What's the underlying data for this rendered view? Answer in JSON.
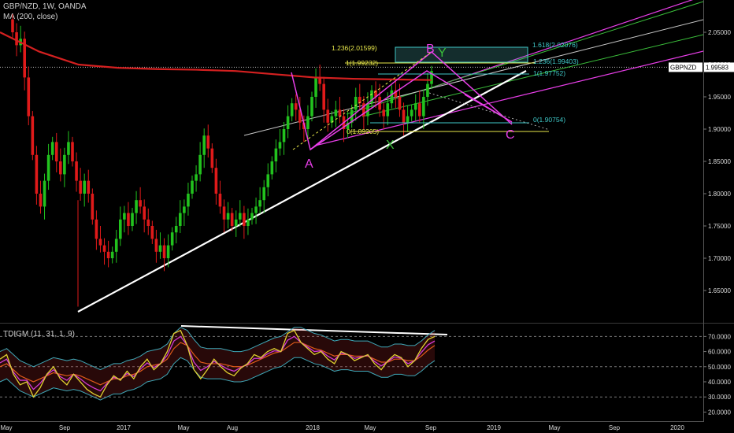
{
  "header": {
    "title": "GBP/NZD, 1W, OANDA",
    "ma_label": "MA (200, close)",
    "indicator_label": "TDIGM (11, 31, 1, 9)"
  },
  "colors": {
    "up": "#22c21e",
    "down": "#e01a1a",
    "ma": "#d42020",
    "trend": "#ffffff",
    "pattern": "#e83ee8",
    "fib": "#3fc8c8",
    "fib_ext": "#e8e84a",
    "upper_channel": "#e83ee8",
    "green_lines": "#3bbf3b",
    "grey_line": "#c8c8c8"
  },
  "price_axis": {
    "ticks": [
      "2.05000",
      "2.00000",
      "1.95000",
      "1.90000",
      "1.85000",
      "1.80000",
      "1.75000",
      "1.70000",
      "1.65000"
    ],
    "current_label": "GBPNZD",
    "current_value": "1.99583",
    "range": [
      1.6,
      2.1
    ]
  },
  "indicator_axis": {
    "ticks": [
      "70.0000",
      "60.0000",
      "50.0000",
      "40.0000",
      "30.0000",
      "20.0000"
    ],
    "range": [
      15,
      78
    ]
  },
  "time_axis": {
    "labels": [
      "May",
      "Sep",
      "2017",
      "May",
      "Aug",
      "2018",
      "May",
      "Sep",
      "2019",
      "May",
      "Sep",
      "2020"
    ]
  },
  "annotations": {
    "points": {
      "A": "A",
      "B": "B",
      "C": "C",
      "X": "X",
      "Y": "Y"
    },
    "fib": [
      {
        "label": "1.618(2.02076)"
      },
      {
        "label": "1.236(2.01599)"
      },
      {
        "label": "1.236(1.99403)"
      },
      {
        "label": "1(1.99232)"
      },
      {
        "label": "1(1.97752)"
      },
      {
        "label": "0(1.90754)"
      },
      {
        "label": "0(1.89205)"
      }
    ]
  },
  "chart_data": [
    {
      "type": "candlestick",
      "title": "GBP/NZD, 1W, OANDA",
      "ylim": [
        1.6,
        2.1
      ],
      "series": [
        {
          "name": "GBP/NZD",
          "closes": [
            2.05,
            2.03,
            2.04,
            1.98,
            1.92,
            1.86,
            1.8,
            1.78,
            1.82,
            1.86,
            1.88,
            1.85,
            1.83,
            1.86,
            1.88,
            1.85,
            1.82,
            1.8,
            1.82,
            1.8,
            1.76,
            1.73,
            1.72,
            1.71,
            1.7,
            1.71,
            1.73,
            1.76,
            1.77,
            1.75,
            1.77,
            1.79,
            1.78,
            1.76,
            1.75,
            1.73,
            1.71,
            1.72,
            1.7,
            1.72,
            1.74,
            1.75,
            1.77,
            1.78,
            1.8,
            1.82,
            1.83,
            1.86,
            1.89,
            1.87,
            1.84,
            1.8,
            1.78,
            1.76,
            1.77,
            1.75,
            1.76,
            1.77,
            1.75,
            1.76,
            1.77,
            1.78,
            1.79,
            1.81,
            1.83,
            1.85,
            1.87,
            1.88,
            1.9,
            1.92,
            1.94,
            1.93,
            1.91,
            1.9,
            1.92,
            1.95,
            1.98,
            1.97,
            1.93,
            1.91,
            1.92,
            1.93,
            1.92,
            1.9,
            1.91,
            1.93,
            1.95,
            1.94,
            1.92,
            1.94,
            1.96,
            1.95,
            1.93,
            1.92,
            1.94,
            1.96,
            1.95,
            1.93,
            1.91,
            1.92,
            1.93,
            1.94,
            1.92,
            1.95,
            1.97,
            1.99
          ]
        },
        {
          "name": "MA (200, close)",
          "values": [
            2.05,
            2.02,
            2.0,
            1.995,
            1.993,
            1.992,
            1.99,
            1.985,
            1.98,
            1.978,
            1.977,
            1.976
          ]
        }
      ]
    },
    {
      "type": "line",
      "title": "TDIGM (11, 31, 1, 9)",
      "ylim": [
        15,
        78
      ],
      "series": [
        {
          "name": "price line",
          "values": [
            55,
            58,
            45,
            38,
            40,
            30,
            36,
            45,
            50,
            42,
            38,
            45,
            40,
            35,
            32,
            30,
            38,
            44,
            41,
            47,
            42,
            50,
            55,
            48,
            52,
            60,
            72,
            74,
            64,
            48,
            42,
            48,
            55,
            50,
            46,
            44,
            49,
            52,
            58,
            56,
            60,
            62,
            60,
            72,
            74,
            66,
            62,
            58,
            60,
            55,
            52,
            60,
            58,
            54,
            56,
            58,
            52,
            48,
            54,
            58,
            56,
            50,
            54,
            62,
            68,
            70
          ]
        },
        {
          "name": "signal line",
          "values": [
            50,
            52,
            48,
            44,
            42,
            40,
            42,
            44,
            46,
            45,
            44,
            45,
            44,
            42,
            40,
            38,
            40,
            42,
            42,
            44,
            45,
            47,
            50,
            51,
            52,
            55,
            62,
            66,
            64,
            58,
            53,
            52,
            52,
            52,
            51,
            50,
            50,
            51,
            53,
            55,
            57,
            59,
            60,
            63,
            66,
            66,
            64,
            62,
            61,
            59,
            57,
            58,
            58,
            57,
            57,
            57,
            55,
            53,
            53,
            55,
            55,
            54,
            54,
            57,
            61,
            64
          ]
        }
      ]
    }
  ]
}
